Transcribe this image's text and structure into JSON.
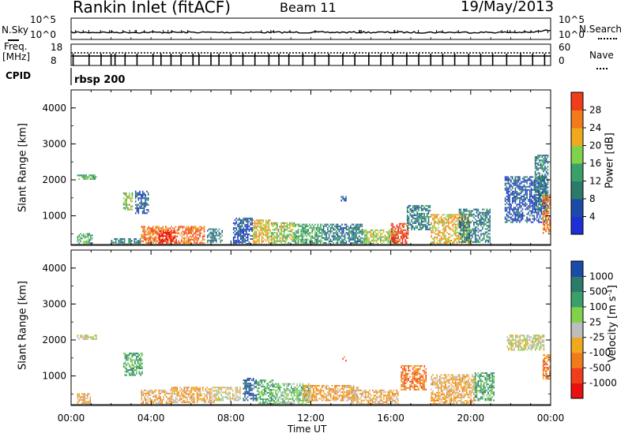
{
  "header": {
    "title": "Rankin Inlet (fitACF)",
    "beam": "Beam 11",
    "date": "19/May/2013"
  },
  "noise_panel": {
    "left_label": "N.Sky",
    "left_ticks": [
      "10^5",
      "10^0"
    ],
    "right_label": "N.Search",
    "right_ticks": [
      "10^5",
      "10^0"
    ]
  },
  "freq_panel": {
    "left_label_1": "Freq.",
    "left_label_2": "[MHz]",
    "left_ticks": [
      "18",
      "8"
    ],
    "right_label": "Nave",
    "right_ticks": [
      "60",
      "0"
    ]
  },
  "cpid": {
    "label": "CPID",
    "value": "rbsp 200"
  },
  "time_axis": {
    "label": "Time UT",
    "ticks": [
      "00:00",
      "04:00",
      "08:00",
      "12:00",
      "16:00",
      "20:00",
      "00:00"
    ]
  },
  "colors": {
    "power_scale": [
      "#1f2fd6",
      "#1c4aa8",
      "#2c7a6a",
      "#3aa06a",
      "#7fd24a",
      "#f0a81c",
      "#f07a1c",
      "#f03d1c",
      "#e81010"
    ],
    "velocity_scale": [
      "#e81010",
      "#f03d1c",
      "#f07a1c",
      "#f0a81c",
      "#bdbdbd",
      "#7fd24a",
      "#3aa06a",
      "#2c7a6a",
      "#1c4aa8"
    ]
  },
  "chart_data": [
    {
      "type": "heatmap",
      "title": "",
      "xlabel": "Time UT",
      "ylabel": "Slant Range [km]",
      "xlim": [
        0,
        24
      ],
      "ylim": [
        180,
        4500
      ],
      "yticks": [
        "1000",
        "2000",
        "3000",
        "4000"
      ],
      "colorbar": {
        "label": "Power [dB]",
        "ticks": [
          "4",
          "8",
          "12",
          "16",
          "20",
          "24",
          "28"
        ],
        "range": [
          0,
          30
        ]
      },
      "echo_regions": [
        {
          "t0": 0.3,
          "t1": 1.3,
          "r0": 2000,
          "r1": 2150,
          "level": 3
        },
        {
          "t0": 2.6,
          "t1": 3.1,
          "r0": 1150,
          "r1": 1650,
          "level": 4
        },
        {
          "t0": 3.2,
          "t1": 3.9,
          "r0": 1050,
          "r1": 1700,
          "level": 1
        },
        {
          "t0": 0.3,
          "t1": 1.1,
          "r0": 180,
          "r1": 520,
          "level": 3
        },
        {
          "t0": 2.0,
          "t1": 3.5,
          "r0": 180,
          "r1": 380,
          "level": 2
        },
        {
          "t0": 3.5,
          "t1": 6.7,
          "r0": 180,
          "r1": 720,
          "level": 6
        },
        {
          "t0": 4.4,
          "t1": 5.3,
          "r0": 180,
          "r1": 600,
          "level": 8
        },
        {
          "t0": 6.8,
          "t1": 7.6,
          "r0": 250,
          "r1": 650,
          "level": 2
        },
        {
          "t0": 8.1,
          "t1": 9.1,
          "r0": 200,
          "r1": 950,
          "level": 1
        },
        {
          "t0": 9.1,
          "t1": 10.0,
          "r0": 180,
          "r1": 900,
          "level": 5
        },
        {
          "t0": 10.0,
          "t1": 11.2,
          "r0": 180,
          "r1": 820,
          "level": 4
        },
        {
          "t0": 11.2,
          "t1": 12.6,
          "r0": 180,
          "r1": 780,
          "level": 3
        },
        {
          "t0": 12.6,
          "t1": 14.6,
          "r0": 220,
          "r1": 780,
          "level": 2
        },
        {
          "t0": 14.6,
          "t1": 16.4,
          "r0": 200,
          "r1": 620,
          "level": 4
        },
        {
          "t0": 16.0,
          "t1": 16.9,
          "r0": 180,
          "r1": 800,
          "level": 7
        },
        {
          "t0": 16.8,
          "t1": 18.0,
          "r0": 600,
          "r1": 1300,
          "level": 2
        },
        {
          "t0": 18.0,
          "t1": 20.0,
          "r0": 200,
          "r1": 1050,
          "level": 5
        },
        {
          "t0": 19.4,
          "t1": 21.0,
          "r0": 250,
          "r1": 1200,
          "level": 2
        },
        {
          "t0": 13.5,
          "t1": 13.8,
          "r0": 1400,
          "r1": 1550,
          "level": 1
        },
        {
          "t0": 21.7,
          "t1": 23.8,
          "r0": 800,
          "r1": 2100,
          "level": 1
        },
        {
          "t0": 23.2,
          "t1": 23.9,
          "r0": 1100,
          "r1": 2700,
          "level": 2
        },
        {
          "t0": 23.6,
          "t1": 24.0,
          "r0": 500,
          "r1": 1600,
          "level": 6
        }
      ]
    },
    {
      "type": "heatmap",
      "title": "",
      "xlabel": "Time UT",
      "ylabel": "Slant Range [km]",
      "xlim": [
        0,
        24
      ],
      "ylim": [
        180,
        4500
      ],
      "yticks": [
        "1000",
        "2000",
        "3000",
        "4000"
      ],
      "colorbar": {
        "label": "Velocity [m s^-1]",
        "ticks": [
          "1000",
          "500",
          "100",
          "25",
          "-25",
          "-100",
          "-500",
          "-1000"
        ]
      },
      "echo_regions": [
        {
          "t0": 0.3,
          "t1": 1.3,
          "r0": 2000,
          "r1": 2150,
          "level": 4
        },
        {
          "t0": 2.6,
          "t1": 3.6,
          "r0": 1000,
          "r1": 1650,
          "level": 6
        },
        {
          "t0": 0.3,
          "t1": 1.0,
          "r0": 180,
          "r1": 520,
          "level": 3
        },
        {
          "t0": 3.5,
          "t1": 5.1,
          "r0": 180,
          "r1": 620,
          "level": 3
        },
        {
          "t0": 5.0,
          "t1": 7.2,
          "r0": 250,
          "r1": 700,
          "level": 3
        },
        {
          "t0": 7.2,
          "t1": 8.5,
          "r0": 300,
          "r1": 700,
          "level": 4
        },
        {
          "t0": 8.6,
          "t1": 9.3,
          "r0": 300,
          "r1": 950,
          "level": 8
        },
        {
          "t0": 9.3,
          "t1": 10.2,
          "r0": 200,
          "r1": 900,
          "level": 6
        },
        {
          "t0": 10.2,
          "t1": 12.0,
          "r0": 200,
          "r1": 800,
          "level": 5
        },
        {
          "t0": 11.6,
          "t1": 14.4,
          "r0": 300,
          "r1": 750,
          "level": 3
        },
        {
          "t0": 14.0,
          "t1": 16.4,
          "r0": 200,
          "r1": 620,
          "level": 3
        },
        {
          "t0": 16.5,
          "t1": 17.8,
          "r0": 600,
          "r1": 1300,
          "level": 2
        },
        {
          "t0": 18.0,
          "t1": 20.2,
          "r0": 200,
          "r1": 1050,
          "level": 3
        },
        {
          "t0": 20.2,
          "t1": 21.2,
          "r0": 300,
          "r1": 1100,
          "level": 6
        },
        {
          "t0": 13.5,
          "t1": 13.8,
          "r0": 1400,
          "r1": 1550,
          "level": 2
        },
        {
          "t0": 21.8,
          "t1": 23.7,
          "r0": 1700,
          "r1": 2150,
          "level": 4
        },
        {
          "t0": 23.6,
          "t1": 24.0,
          "r0": 900,
          "r1": 1600,
          "level": 2
        }
      ]
    }
  ]
}
